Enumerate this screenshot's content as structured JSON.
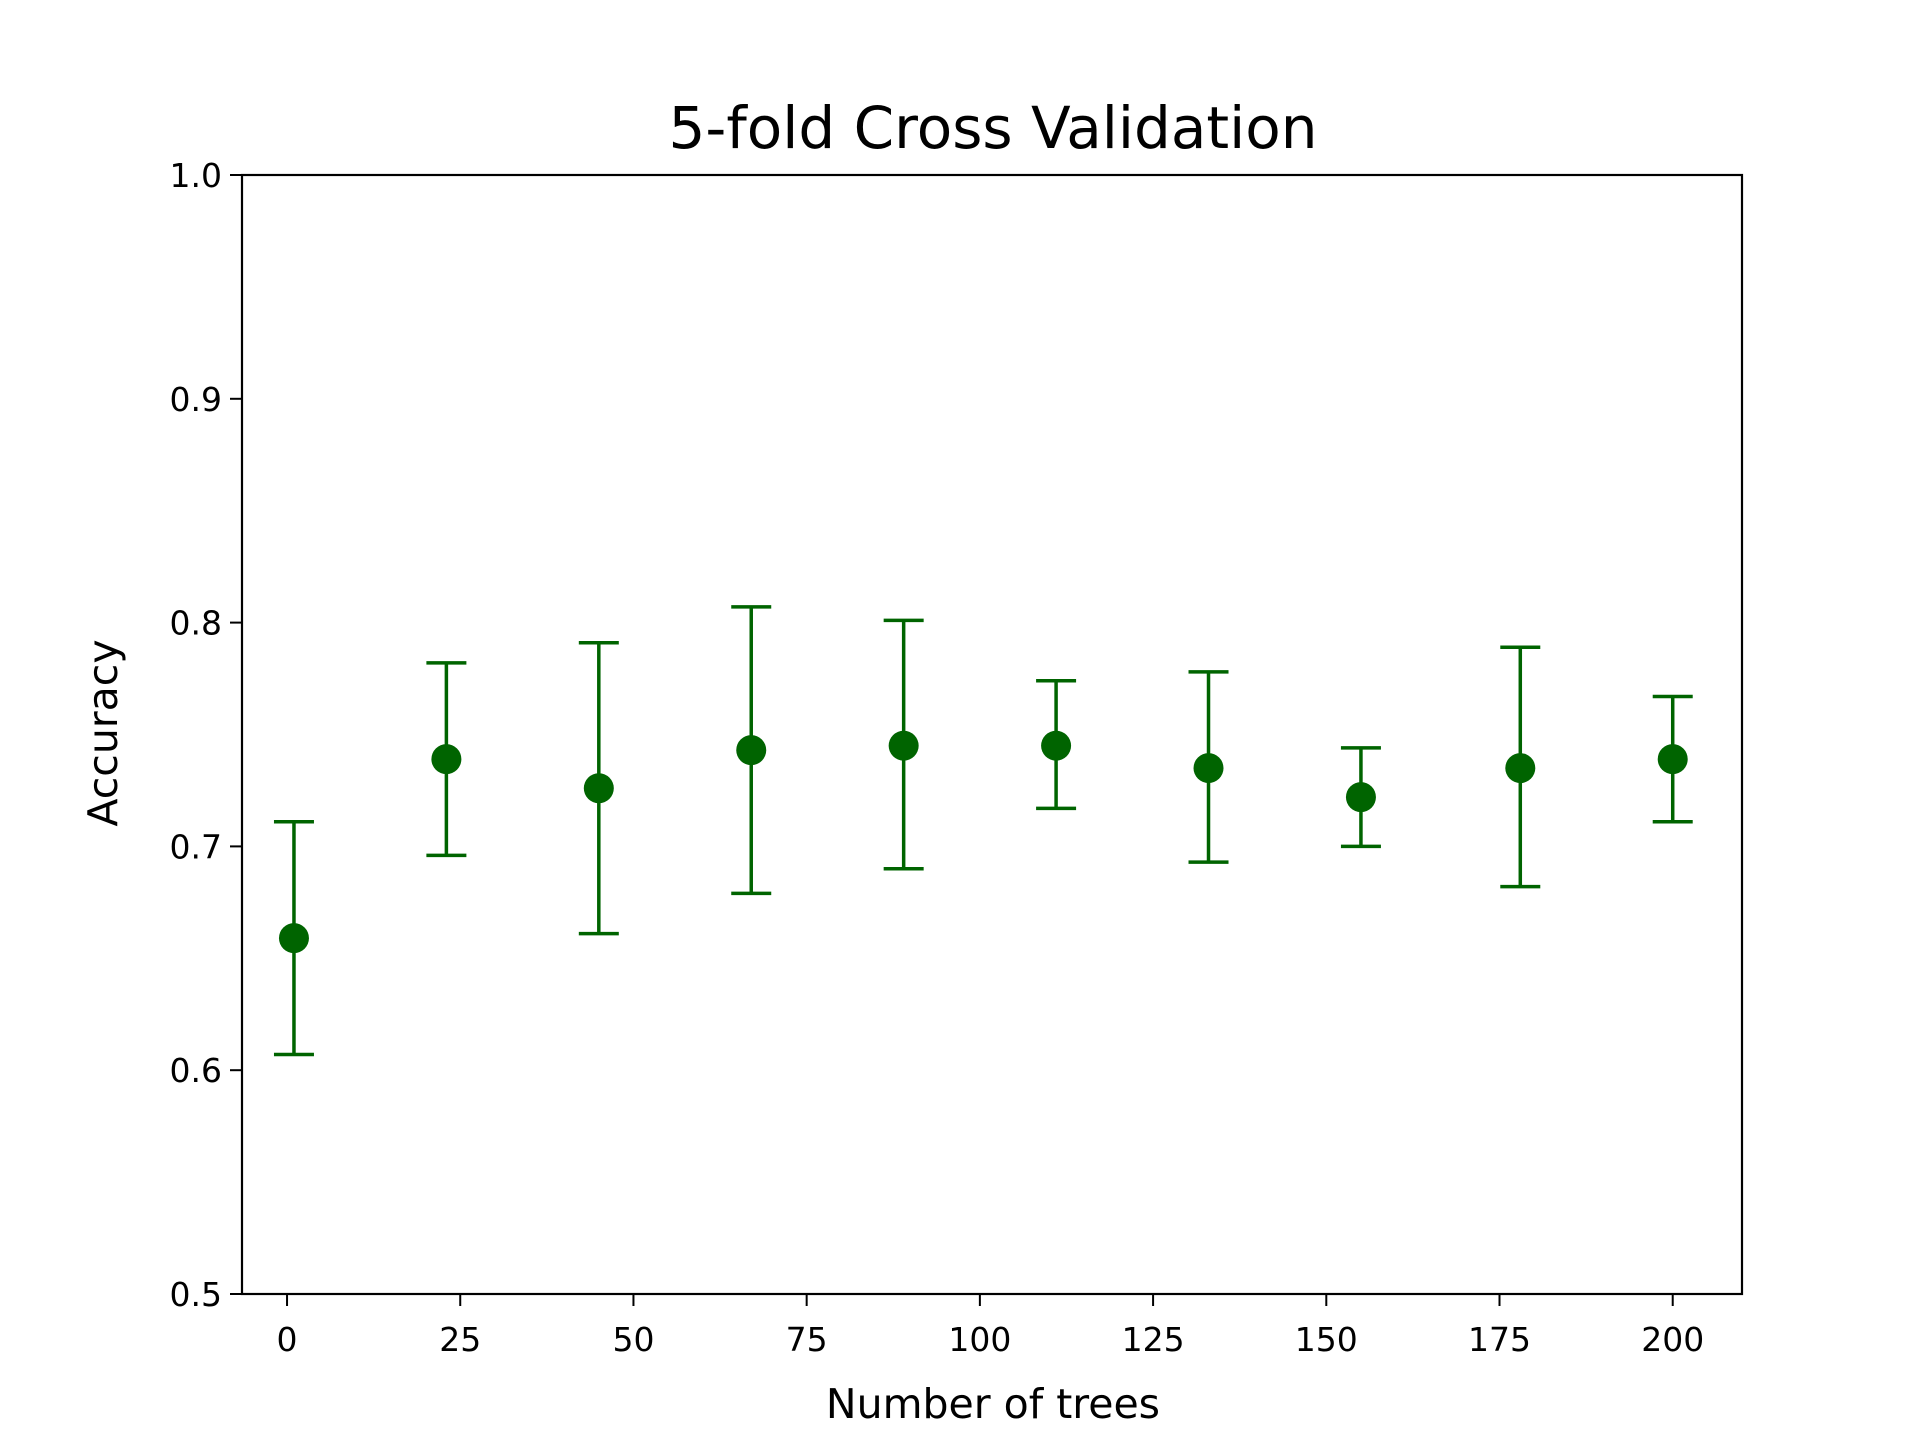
{
  "chart_data": {
    "type": "scatter",
    "title": "5-fold Cross Validation",
    "xlabel": "Number of trees",
    "ylabel": "Accuracy",
    "xlim": [
      -6.5,
      210
    ],
    "ylim": [
      0.5,
      1.0
    ],
    "x_ticks": [
      0,
      25,
      50,
      75,
      100,
      125,
      150,
      175,
      200
    ],
    "x_tick_labels": [
      "0",
      "25",
      "50",
      "75",
      "100",
      "125",
      "150",
      "175",
      "200"
    ],
    "y_ticks": [
      0.5,
      0.6,
      0.7,
      0.8,
      0.9,
      1.0
    ],
    "y_tick_labels": [
      "0.5",
      "0.6",
      "0.7",
      "0.8",
      "0.9",
      "1.0"
    ],
    "grid": false,
    "legend": "none",
    "color": "#006400",
    "series": [
      {
        "x": [
          1,
          23,
          45,
          67,
          89,
          111,
          133,
          155,
          178,
          200
        ],
        "y": [
          0.659,
          0.739,
          0.726,
          0.743,
          0.745,
          0.745,
          0.735,
          0.722,
          0.735,
          0.739
        ],
        "y_err_low": [
          0.607,
          0.696,
          0.661,
          0.679,
          0.69,
          0.717,
          0.693,
          0.7,
          0.682,
          0.711
        ],
        "y_err_high": [
          0.711,
          0.782,
          0.791,
          0.807,
          0.801,
          0.774,
          0.778,
          0.744,
          0.789,
          0.767
        ]
      }
    ]
  }
}
